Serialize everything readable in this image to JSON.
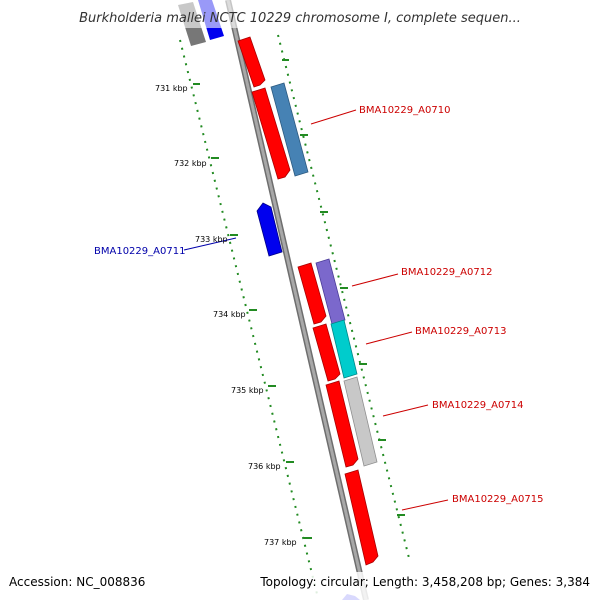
{
  "title": "Burkholderia mallei NCTC 10229 chromosome I, complete sequen...",
  "footer": {
    "accession": "Accession: NC_008836",
    "summary": "Topology: circular; Length: 3,458,208 bp; Genes: 3,384"
  },
  "colors": {
    "backbone": "#8c8c8c",
    "forward_cds": "#ff0000",
    "reverse_cds": "#0000ff",
    "ruler": "#228b22",
    "label_forward": "#cc0000",
    "label_reverse": "#0000aa"
  },
  "ruler": {
    "unit": "kbp",
    "ticks": [
      "731 kbp",
      "732 kbp",
      "733 kbp",
      "734 kbp",
      "735 kbp",
      "736 kbp",
      "737 kbp"
    ]
  },
  "gene_labels": [
    {
      "text": "BMA10229_A0710",
      "strand": "forward"
    },
    {
      "text": "BMA10229_A0711",
      "strand": "reverse"
    },
    {
      "text": "BMA10229_A0712",
      "strand": "forward"
    },
    {
      "text": "BMA10229_A0713",
      "strand": "forward"
    },
    {
      "text": "BMA10229_A0714",
      "strand": "forward"
    },
    {
      "text": "BMA10229_A0715",
      "strand": "forward"
    }
  ]
}
